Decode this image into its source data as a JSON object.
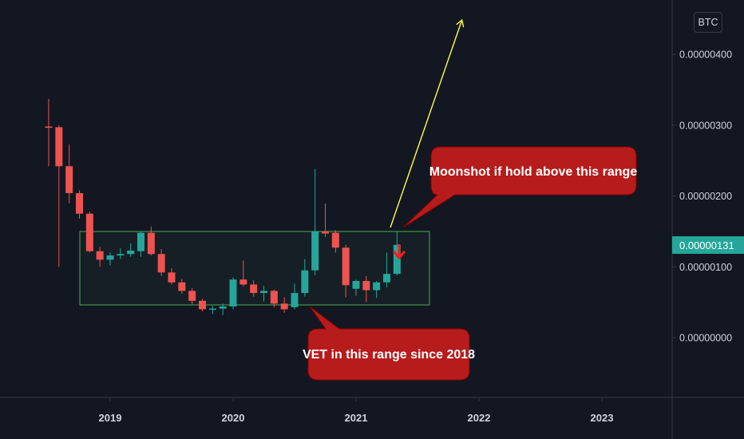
{
  "currency": "BTC",
  "colors": {
    "background": "#131722",
    "up": "#26a69a",
    "down": "#ef5350",
    "range_box": "#4caf50",
    "callout": "#b71c1c",
    "arrow_up": "#ffff3b",
    "arrow_down": "#ff1a1a",
    "axis_line": "#363a45",
    "text": "#d1d4dc"
  },
  "current_price": "0.00000131",
  "y_axis": {
    "ticks": [
      {
        "value": 4e-06,
        "label": "0.00000400"
      },
      {
        "value": 3e-06,
        "label": "0.00000300"
      },
      {
        "value": 2e-06,
        "label": "0.00000200"
      },
      {
        "value": 1e-06,
        "label": "0.00000100"
      },
      {
        "value": 0.0,
        "label": "0.00000000"
      }
    ]
  },
  "x_axis": {
    "ticks": [
      "2019",
      "2020",
      "2021",
      "2022",
      "2023"
    ]
  },
  "annotations": {
    "callout_top": "Moonshot if hold above this range",
    "callout_bottom": "VET in this range since 2018"
  },
  "chart_data": {
    "type": "candlestick",
    "title": "",
    "xlabel": "",
    "ylabel": "",
    "interval": "1M",
    "ylim": [
      -8.6e-07,
      4.7e-06
    ],
    "xlim": [
      "2018-06",
      "2023-12"
    ],
    "grid": false,
    "candles": [
      {
        "date": "2018-07",
        "open": 2.98e-06,
        "high": 3.37e-06,
        "low": 2.42e-06,
        "close": 2.97e-06
      },
      {
        "date": "2018-08",
        "open": 2.97e-06,
        "high": 3e-06,
        "low": 1e-06,
        "close": 2.42e-06
      },
      {
        "date": "2018-09",
        "open": 2.42e-06,
        "high": 2.73e-06,
        "low": 1.9e-06,
        "close": 2.04e-06
      },
      {
        "date": "2018-10",
        "open": 2.04e-06,
        "high": 2.08e-06,
        "low": 1.68e-06,
        "close": 1.75e-06
      },
      {
        "date": "2018-11",
        "open": 1.75e-06,
        "high": 1.78e-06,
        "low": 1.2e-06,
        "close": 1.22e-06
      },
      {
        "date": "2018-12",
        "open": 1.22e-06,
        "high": 1.28e-06,
        "low": 1e-06,
        "close": 1.1e-06
      },
      {
        "date": "2019-01",
        "open": 1.1e-06,
        "high": 1.2e-06,
        "low": 1.02e-06,
        "close": 1.16e-06
      },
      {
        "date": "2019-02",
        "open": 1.16e-06,
        "high": 1.26e-06,
        "low": 1.11e-06,
        "close": 1.18e-06
      },
      {
        "date": "2019-03",
        "open": 1.18e-06,
        "high": 1.33e-06,
        "low": 1.14e-06,
        "close": 1.23e-06
      },
      {
        "date": "2019-04",
        "open": 1.22e-06,
        "high": 1.5e-06,
        "low": 1.14e-06,
        "close": 1.48e-06
      },
      {
        "date": "2019-05",
        "open": 1.48e-06,
        "high": 1.57e-06,
        "low": 1.16e-06,
        "close": 1.18e-06
      },
      {
        "date": "2019-06",
        "open": 1.18e-06,
        "high": 1.25e-06,
        "low": 8.7e-07,
        "close": 9.2e-07
      },
      {
        "date": "2019-07",
        "open": 9.2e-07,
        "high": 9.8e-07,
        "low": 7.5e-07,
        "close": 7.8e-07
      },
      {
        "date": "2019-08",
        "open": 7.8e-07,
        "high": 8.3e-07,
        "low": 6.2e-07,
        "close": 6.6e-07
      },
      {
        "date": "2019-09",
        "open": 6.6e-07,
        "high": 7e-07,
        "low": 4.7e-07,
        "close": 5.2e-07
      },
      {
        "date": "2019-10",
        "open": 5.2e-07,
        "high": 5.5e-07,
        "low": 3.7e-07,
        "close": 4e-07
      },
      {
        "date": "2019-11",
        "open": 4e-07,
        "high": 4.5e-07,
        "low": 3.3e-07,
        "close": 4.1e-07
      },
      {
        "date": "2019-12",
        "open": 4.1e-07,
        "high": 4.8e-07,
        "low": 3.2e-07,
        "close": 4.4e-07
      },
      {
        "date": "2020-01",
        "open": 4.4e-07,
        "high": 8.5e-07,
        "low": 4e-07,
        "close": 8.2e-07
      },
      {
        "date": "2020-02",
        "open": 8.2e-07,
        "high": 1.09e-06,
        "low": 7.2e-07,
        "close": 7.5e-07
      },
      {
        "date": "2020-03",
        "open": 7.5e-07,
        "high": 8.1e-07,
        "low": 5.8e-07,
        "close": 6.3e-07
      },
      {
        "date": "2020-04",
        "open": 6.3e-07,
        "high": 7.3e-07,
        "low": 5.1e-07,
        "close": 6.6e-07
      },
      {
        "date": "2020-05",
        "open": 6.6e-07,
        "high": 6.8e-07,
        "low": 4.3e-07,
        "close": 4.8e-07
      },
      {
        "date": "2020-06",
        "open": 4.8e-07,
        "high": 5.7e-07,
        "low": 3.5e-07,
        "close": 4e-07
      },
      {
        "date": "2020-07",
        "open": 4.3e-07,
        "high": 7.6e-07,
        "low": 4e-07,
        "close": 6.3e-07
      },
      {
        "date": "2020-08",
        "open": 6.3e-07,
        "high": 1.11e-06,
        "low": 5.8e-07,
        "close": 9.5e-07
      },
      {
        "date": "2020-09",
        "open": 9.5e-07,
        "high": 2.38e-06,
        "low": 8.8e-07,
        "close": 1.5e-06
      },
      {
        "date": "2020-10",
        "open": 1.5e-06,
        "high": 1.89e-06,
        "low": 1.42e-06,
        "close": 1.47e-06
      },
      {
        "date": "2020-11",
        "open": 1.48e-06,
        "high": 1.52e-06,
        "low": 1.2e-06,
        "close": 1.27e-06
      },
      {
        "date": "2020-12",
        "open": 1.27e-06,
        "high": 1.31e-06,
        "low": 5.7e-07,
        "close": 7.4e-07
      },
      {
        "date": "2021-01",
        "open": 6.9e-07,
        "high": 8.2e-07,
        "low": 5.9e-07,
        "close": 8e-07
      },
      {
        "date": "2021-02",
        "open": 8e-07,
        "high": 8.7e-07,
        "low": 5e-07,
        "close": 6.7e-07
      },
      {
        "date": "2021-03",
        "open": 6.7e-07,
        "high": 8e-07,
        "low": 5.6e-07,
        "close": 7.8e-07
      },
      {
        "date": "2021-04",
        "open": 7.8e-07,
        "high": 1.2e-06,
        "low": 7.1e-07,
        "close": 9e-07
      },
      {
        "date": "2021-05",
        "open": 9e-07,
        "high": 1.49e-06,
        "low": 8.8e-07,
        "close": 1.31e-06
      }
    ],
    "range_box": {
      "from": "2018-10",
      "to": "2021-10",
      "low": 4.4e-07,
      "high": 1.5e-06
    }
  }
}
